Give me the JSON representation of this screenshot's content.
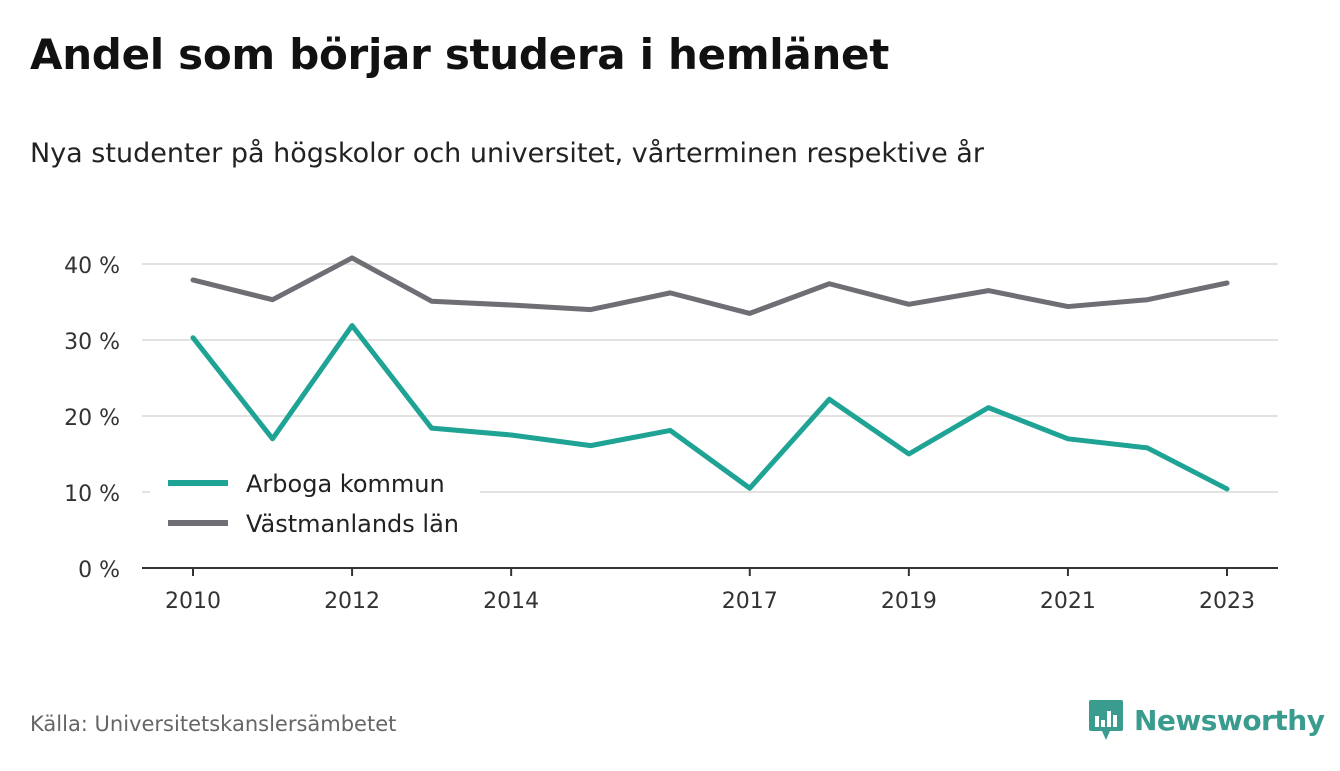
{
  "title": "Andel som börjar studera i hemlänet",
  "subtitle": "Nya studenter på högskolor och universitet, vårterminen respektive år",
  "source": "Källa: Universitetskanslersämbetet",
  "brand": {
    "name": "Newsworthy",
    "icon": "newsworthy-logo-icon",
    "color": "#3a9c8f"
  },
  "chart_data": {
    "type": "line",
    "x": [
      2010,
      2011,
      2012,
      2013,
      2014,
      2015,
      2016,
      2017,
      2018,
      2019,
      2020,
      2021,
      2022,
      2023
    ],
    "x_tick_labels": [
      "2010",
      "2012",
      "2014",
      "2017",
      "2019",
      "2021",
      "2023"
    ],
    "y_tick_labels": [
      "0 %",
      "10 %",
      "20 %",
      "30 %",
      "40 %"
    ],
    "ylim": [
      0,
      40
    ],
    "grid": true,
    "legend_position": "bottom-left",
    "series": [
      {
        "name": "Arboga kommun",
        "color": "#1fa394",
        "values": [
          30.3,
          17.0,
          31.9,
          18.4,
          17.5,
          16.1,
          18.1,
          10.5,
          22.2,
          15.0,
          21.1,
          17.0,
          15.8,
          10.4
        ]
      },
      {
        "name": "Västmanlands län",
        "color": "#6f6e75",
        "values": [
          37.9,
          35.3,
          40.8,
          35.1,
          34.6,
          34.0,
          36.2,
          33.5,
          37.4,
          34.7,
          36.5,
          34.4,
          35.3,
          37.5
        ]
      }
    ]
  }
}
